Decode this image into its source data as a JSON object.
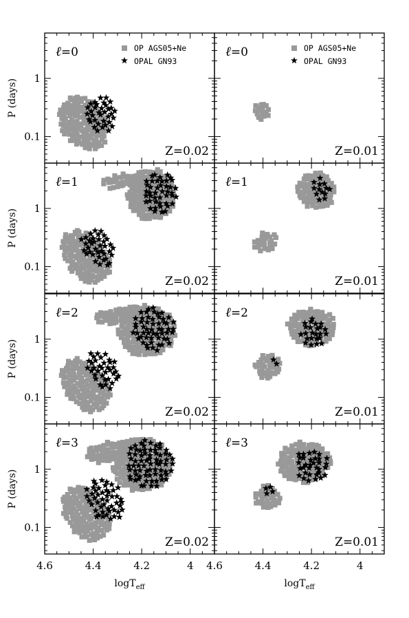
{
  "chart_data": {
    "type": "scatter",
    "xlabel": "logT",
    "xlabel_sub": "eff",
    "ylabel": "P (days)",
    "xlim": [
      4.6,
      3.9
    ],
    "ylim": [
      0.035,
      6.0
    ],
    "yscale": "log",
    "x_ticks": [
      "4.6",
      "4.4",
      "4.2",
      "4",
      "4.6",
      "4.4",
      "4.2",
      "4"
    ],
    "y_ticks": [
      "1",
      "0.1"
    ],
    "legend": {
      "position": "top-right",
      "entries": [
        {
          "label": "OP AGS05+Ne",
          "marker": "gray-square"
        },
        {
          "label": "OPAL GN93",
          "marker": "black-star"
        }
      ]
    },
    "colors": {
      "op": "#999999",
      "opal": "#000000"
    },
    "panels": [
      {
        "label_symbol": "ℓ",
        "label_value": "=0",
        "degree": 0,
        "Z_label": "Z=0.02",
        "op_regions": [
          {
            "cx": 4.44,
            "cy": 0.17,
            "rx": 0.09,
            "ry": 0.5,
            "rot": -38
          }
        ],
        "opal_regions": [
          {
            "cx": 4.37,
            "cy": 0.24,
            "rx": 0.07,
            "ry": 0.33,
            "rot": -35
          }
        ]
      },
      {
        "label_symbol": "ℓ",
        "label_value": "=0",
        "degree": 0,
        "Z_label": "Z=0.01",
        "op_regions": [
          {
            "cx": 4.405,
            "cy": 0.265,
            "rx": 0.035,
            "ry": 0.16,
            "rot": -35
          }
        ],
        "opal_regions": []
      },
      {
        "label_symbol": "ℓ",
        "label_value": "=1",
        "degree": 1,
        "Z_label": "Z=0.02",
        "op_regions": [
          {
            "cx": 4.43,
            "cy": 0.15,
            "rx": 0.085,
            "ry": 0.52,
            "rot": -38
          },
          {
            "cx": 4.16,
            "cy": 1.7,
            "rx": 0.1,
            "ry": 0.45,
            "rot": 0
          },
          {
            "cx": 4.28,
            "cy": 3.0,
            "rx": 0.09,
            "ry": 0.12,
            "rot": -10
          }
        ],
        "opal_regions": [
          {
            "cx": 4.38,
            "cy": 0.22,
            "rx": 0.06,
            "ry": 0.36,
            "rot": -35
          },
          {
            "cx": 4.13,
            "cy": 1.9,
            "rx": 0.075,
            "ry": 0.36,
            "rot": 0
          }
        ]
      },
      {
        "label_symbol": "ℓ",
        "label_value": "=1",
        "degree": 1,
        "Z_label": "Z=0.01",
        "op_regions": [
          {
            "cx": 4.39,
            "cy": 0.26,
            "rx": 0.05,
            "ry": 0.17,
            "rot": -30
          },
          {
            "cx": 4.18,
            "cy": 2.0,
            "rx": 0.08,
            "ry": 0.32,
            "rot": 0
          }
        ],
        "opal_regions": [
          {
            "cx": 4.16,
            "cy": 2.1,
            "rx": 0.045,
            "ry": 0.2,
            "rot": 0
          }
        ]
      },
      {
        "label_symbol": "ℓ",
        "label_value": "=2",
        "degree": 2,
        "Z_label": "Z=0.02",
        "op_regions": [
          {
            "cx": 4.43,
            "cy": 0.16,
            "rx": 0.085,
            "ry": 0.52,
            "rot": -38
          },
          {
            "cx": 4.18,
            "cy": 1.4,
            "rx": 0.12,
            "ry": 0.45,
            "rot": 0
          },
          {
            "cx": 4.3,
            "cy": 2.6,
            "rx": 0.1,
            "ry": 0.14,
            "rot": -10
          }
        ],
        "opal_regions": [
          {
            "cx": 4.36,
            "cy": 0.3,
            "rx": 0.065,
            "ry": 0.36,
            "rot": -35
          },
          {
            "cx": 4.15,
            "cy": 1.45,
            "rx": 0.09,
            "ry": 0.38,
            "rot": 0
          }
        ]
      },
      {
        "label_symbol": "ℓ",
        "label_value": "=2",
        "degree": 2,
        "Z_label": "Z=0.01",
        "op_regions": [
          {
            "cx": 4.38,
            "cy": 0.33,
            "rx": 0.055,
            "ry": 0.22,
            "rot": -30
          },
          {
            "cx": 4.2,
            "cy": 1.6,
            "rx": 0.1,
            "ry": 0.33,
            "rot": 0
          }
        ],
        "opal_regions": [
          {
            "cx": 4.19,
            "cy": 1.3,
            "rx": 0.055,
            "ry": 0.25,
            "rot": 0
          },
          {
            "cx": 4.35,
            "cy": 0.42,
            "rx": 0.025,
            "ry": 0.06,
            "rot": -25
          }
        ]
      },
      {
        "label_symbol": "ℓ",
        "label_value": "=3",
        "degree": 3,
        "Z_label": "Z=0.02",
        "op_regions": [
          {
            "cx": 4.43,
            "cy": 0.17,
            "rx": 0.085,
            "ry": 0.52,
            "rot": -38
          },
          {
            "cx": 4.2,
            "cy": 1.2,
            "rx": 0.12,
            "ry": 0.48,
            "rot": 0
          },
          {
            "cx": 4.33,
            "cy": 2.0,
            "rx": 0.1,
            "ry": 0.18,
            "rot": -10
          }
        ],
        "opal_regions": [
          {
            "cx": 4.35,
            "cy": 0.3,
            "rx": 0.075,
            "ry": 0.4,
            "rot": -35
          },
          {
            "cx": 4.17,
            "cy": 1.25,
            "rx": 0.1,
            "ry": 0.42,
            "rot": 0
          }
        ]
      },
      {
        "label_symbol": "ℓ",
        "label_value": "=3",
        "degree": 3,
        "Z_label": "Z=0.01",
        "op_regions": [
          {
            "cx": 4.38,
            "cy": 0.33,
            "rx": 0.055,
            "ry": 0.22,
            "rot": -30
          },
          {
            "cx": 4.23,
            "cy": 1.3,
            "rx": 0.11,
            "ry": 0.36,
            "rot": 0
          }
        ],
        "opal_regions": [
          {
            "cx": 4.2,
            "cy": 1.15,
            "rx": 0.07,
            "ry": 0.3,
            "rot": 0
          },
          {
            "cx": 4.38,
            "cy": 0.42,
            "rx": 0.025,
            "ry": 0.07,
            "rot": -25
          }
        ]
      }
    ]
  }
}
